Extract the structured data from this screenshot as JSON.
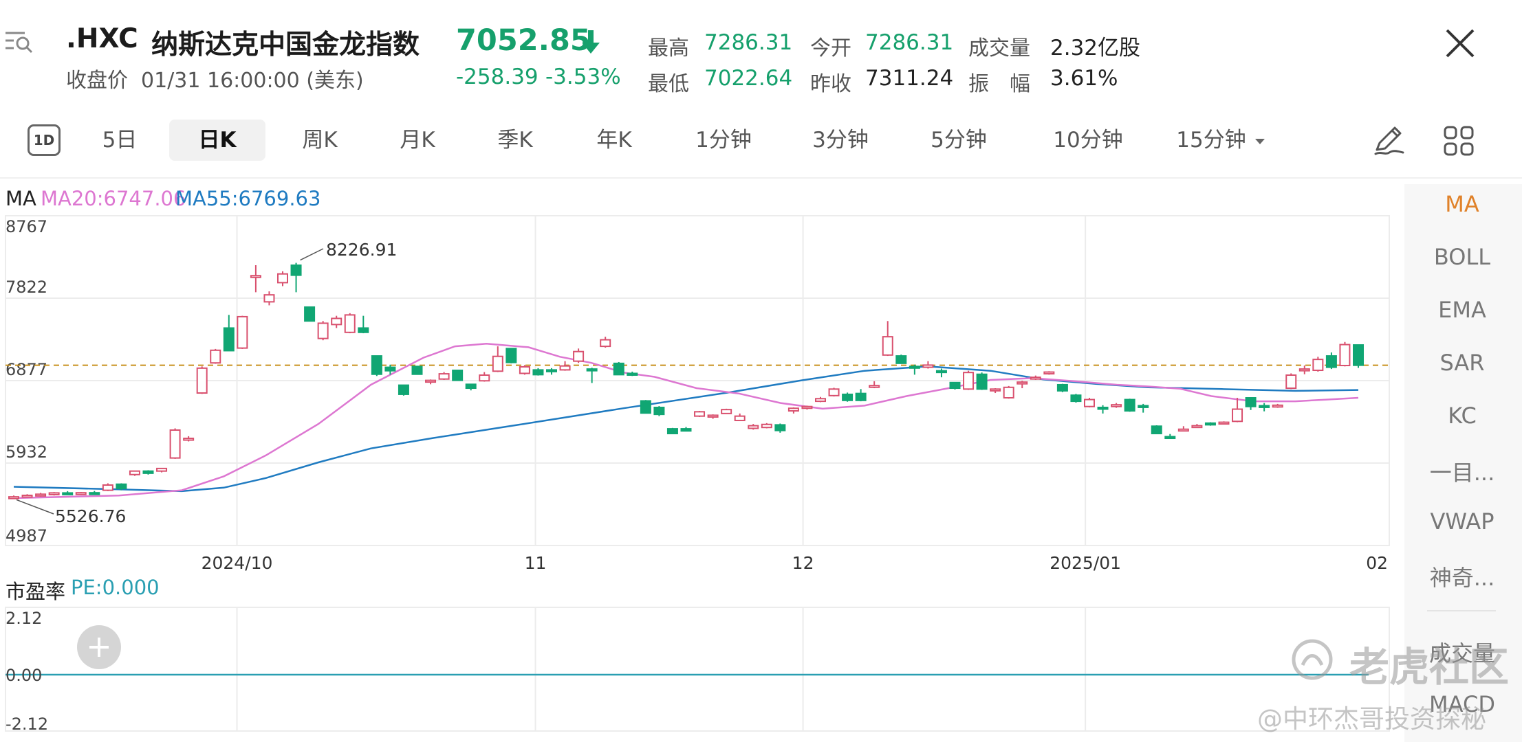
{
  "header": {
    "symbol": ".HXC",
    "name": "纳斯达克中国金龙指数",
    "price": "7052.85",
    "close_label": "收盘价",
    "close_time": "01/31 16:00:00 (美东)",
    "change": "-258.39",
    "change_pct": "-3.53%",
    "stats": [
      {
        "label": "最高",
        "value": "7286.31",
        "color": "#16a06c"
      },
      {
        "label": "今开",
        "value": "7286.31",
        "color": "#16a06c"
      },
      {
        "label": "成交量",
        "value": "2.32亿股",
        "color": "#222222"
      },
      {
        "label": "最低",
        "value": "7022.64",
        "color": "#16a06c"
      },
      {
        "label": "昨收",
        "value": "7311.24",
        "color": "#222222"
      },
      {
        "label": "振　幅",
        "value": "3.61%",
        "color": "#222222"
      }
    ]
  },
  "periods": {
    "day_icon_text": "1D",
    "tabs": [
      "5日",
      "日K",
      "周K",
      "月K",
      "季K",
      "年K",
      "1分钟",
      "3分钟",
      "5分钟",
      "10分钟",
      "15分钟"
    ],
    "active": "日K"
  },
  "icons": [
    "menu-search-icon",
    "arrow-down-icon",
    "close-icon",
    "dropdown-arrow-icon",
    "pencil-icon",
    "grid-icon",
    "plus-icon"
  ],
  "colors": {
    "up": "#d9506e",
    "down": "#10a673",
    "ma20": "#dd77d1",
    "ma55": "#1f7bc1",
    "accent": "#e0822a",
    "pe": "#2a9fb2"
  },
  "legend": {
    "ma": "MA",
    "ma20": "MA20:6747.06",
    "ma55": "MA55:6769.63"
  },
  "indicators": {
    "items": [
      "MA",
      "BOLL",
      "EMA",
      "SAR",
      "KC",
      "一目...",
      "VWAP",
      "神奇..."
    ],
    "active": "MA",
    "sub_items": [
      "成交量",
      "MACD"
    ]
  },
  "sub_chart": {
    "label": "市盈率",
    "value": "PE:0.000",
    "y_ticks": [
      "2.12",
      "0.00",
      "-2.12"
    ]
  },
  "watermark": {
    "brand": "老虎社区",
    "author": "@中环杰哥投资探秘"
  },
  "chart_data": {
    "type": "candlestick",
    "y_ticks": [
      "8767",
      "7822",
      "6877",
      "5932",
      "4987"
    ],
    "ylim": [
      4987,
      8767
    ],
    "x_ticks": [
      "2024/10",
      "11",
      "12",
      "2025/01",
      "02"
    ],
    "x_tick_index": [
      16.6,
      38.8,
      58.7,
      79.7,
      100.8
    ],
    "reference_line": 7052.85,
    "annotations": [
      {
        "text": "8226.91",
        "index": 21,
        "value": 8226.91
      },
      {
        "text": "5526.76",
        "index": 0,
        "value": 5526.76
      }
    ],
    "candles": [
      {
        "o": 5540,
        "h": 5560,
        "l": 5527,
        "c": 5545
      },
      {
        "o": 5550,
        "h": 5575,
        "l": 5535,
        "c": 5562
      },
      {
        "o": 5560,
        "h": 5590,
        "l": 5548,
        "c": 5575
      },
      {
        "o": 5575,
        "h": 5600,
        "l": 5560,
        "c": 5590
      },
      {
        "o": 5590,
        "h": 5610,
        "l": 5575,
        "c": 5580
      },
      {
        "o": 5580,
        "h": 5600,
        "l": 5565,
        "c": 5592
      },
      {
        "o": 5592,
        "h": 5612,
        "l": 5580,
        "c": 5588
      },
      {
        "o": 5620,
        "h": 5700,
        "l": 5610,
        "c": 5680
      },
      {
        "o": 5690,
        "h": 5700,
        "l": 5620,
        "c": 5640
      },
      {
        "o": 5800,
        "h": 5845,
        "l": 5785,
        "c": 5840
      },
      {
        "o": 5840,
        "h": 5850,
        "l": 5800,
        "c": 5815
      },
      {
        "o": 5840,
        "h": 5875,
        "l": 5825,
        "c": 5870
      },
      {
        "o": 5990,
        "h": 6330,
        "l": 5980,
        "c": 6310
      },
      {
        "o": 6215,
        "h": 6240,
        "l": 6180,
        "c": 6215
      },
      {
        "o": 6735,
        "h": 7040,
        "l": 6725,
        "c": 7020
      },
      {
        "o": 7080,
        "h": 7240,
        "l": 7070,
        "c": 7225
      },
      {
        "o": 7480,
        "h": 7630,
        "l": 7220,
        "c": 7220
      },
      {
        "o": 7250,
        "h": 7620,
        "l": 7240,
        "c": 7610
      },
      {
        "o": 8070,
        "h": 8200,
        "l": 7890,
        "c": 8080
      },
      {
        "o": 7780,
        "h": 7900,
        "l": 7740,
        "c": 7860
      },
      {
        "o": 8000,
        "h": 8130,
        "l": 7960,
        "c": 8100
      },
      {
        "o": 8200,
        "h": 8227,
        "l": 7890,
        "c": 8085
      },
      {
        "o": 7720,
        "h": 7720,
        "l": 7560,
        "c": 7560
      },
      {
        "o": 7360,
        "h": 7560,
        "l": 7340,
        "c": 7535
      },
      {
        "o": 7520,
        "h": 7620,
        "l": 7480,
        "c": 7590
      },
      {
        "o": 7430,
        "h": 7650,
        "l": 7420,
        "c": 7630
      },
      {
        "o": 7480,
        "h": 7620,
        "l": 7420,
        "c": 7430
      },
      {
        "o": 7160,
        "h": 7160,
        "l": 6930,
        "c": 6950
      },
      {
        "o": 7030,
        "h": 7060,
        "l": 6945,
        "c": 6990
      },
      {
        "o": 6825,
        "h": 6825,
        "l": 6705,
        "c": 6720
      },
      {
        "o": 7040,
        "h": 7040,
        "l": 6945,
        "c": 6950
      },
      {
        "o": 6865,
        "h": 6890,
        "l": 6835,
        "c": 6880
      },
      {
        "o": 6895,
        "h": 6975,
        "l": 6885,
        "c": 6955
      },
      {
        "o": 6995,
        "h": 7000,
        "l": 6875,
        "c": 6880
      },
      {
        "o": 6835,
        "h": 6840,
        "l": 6765,
        "c": 6790
      },
      {
        "o": 6875,
        "h": 6975,
        "l": 6865,
        "c": 6940
      },
      {
        "o": 6985,
        "h": 7270,
        "l": 6975,
        "c": 7155
      },
      {
        "o": 7245,
        "h": 7245,
        "l": 7075,
        "c": 7085
      },
      {
        "o": 6960,
        "h": 7055,
        "l": 6945,
        "c": 7035
      },
      {
        "o": 7000,
        "h": 7020,
        "l": 6935,
        "c": 6945
      },
      {
        "o": 7000,
        "h": 7020,
        "l": 6945,
        "c": 6985
      },
      {
        "o": 7000,
        "h": 7100,
        "l": 6990,
        "c": 7045
      },
      {
        "o": 7100,
        "h": 7245,
        "l": 7080,
        "c": 7210
      },
      {
        "o": 7010,
        "h": 7025,
        "l": 6850,
        "c": 7000
      },
      {
        "o": 7270,
        "h": 7380,
        "l": 7255,
        "c": 7345
      },
      {
        "o": 7075,
        "h": 7090,
        "l": 6940,
        "c": 6945
      },
      {
        "o": 6960,
        "h": 6980,
        "l": 6930,
        "c": 6950
      },
      {
        "o": 6645,
        "h": 6655,
        "l": 6500,
        "c": 6505
      },
      {
        "o": 6570,
        "h": 6585,
        "l": 6470,
        "c": 6490
      },
      {
        "o": 6325,
        "h": 6335,
        "l": 6265,
        "c": 6270
      },
      {
        "o": 6325,
        "h": 6345,
        "l": 6295,
        "c": 6300
      },
      {
        "o": 6470,
        "h": 6530,
        "l": 6460,
        "c": 6520
      },
      {
        "o": 6460,
        "h": 6490,
        "l": 6440,
        "c": 6480
      },
      {
        "o": 6500,
        "h": 6555,
        "l": 6495,
        "c": 6545
      },
      {
        "o": 6420,
        "h": 6500,
        "l": 6415,
        "c": 6470
      },
      {
        "o": 6330,
        "h": 6380,
        "l": 6315,
        "c": 6360
      },
      {
        "o": 6340,
        "h": 6390,
        "l": 6330,
        "c": 6375
      },
      {
        "o": 6370,
        "h": 6385,
        "l": 6280,
        "c": 6305
      },
      {
        "o": 6530,
        "h": 6570,
        "l": 6500,
        "c": 6560
      },
      {
        "o": 6560,
        "h": 6590,
        "l": 6545,
        "c": 6580
      },
      {
        "o": 6640,
        "h": 6690,
        "l": 6630,
        "c": 6670
      },
      {
        "o": 6705,
        "h": 6795,
        "l": 6695,
        "c": 6780
      },
      {
        "o": 6720,
        "h": 6740,
        "l": 6635,
        "c": 6650
      },
      {
        "o": 6730,
        "h": 6780,
        "l": 6640,
        "c": 6650
      },
      {
        "o": 6820,
        "h": 6870,
        "l": 6790,
        "c": 6820
      },
      {
        "o": 7170,
        "h": 7560,
        "l": 7160,
        "c": 7380
      },
      {
        "o": 7160,
        "h": 7175,
        "l": 7070,
        "c": 7075
      },
      {
        "o": 7040,
        "h": 7060,
        "l": 6945,
        "c": 7030
      },
      {
        "o": 7030,
        "h": 7100,
        "l": 7015,
        "c": 7055
      },
      {
        "o": 6990,
        "h": 7015,
        "l": 6915,
        "c": 6975
      },
      {
        "o": 6855,
        "h": 6860,
        "l": 6775,
        "c": 6790
      },
      {
        "o": 6780,
        "h": 6990,
        "l": 6770,
        "c": 6970
      },
      {
        "o": 6950,
        "h": 6970,
        "l": 6770,
        "c": 6780
      },
      {
        "o": 6770,
        "h": 6790,
        "l": 6735,
        "c": 6780
      },
      {
        "o": 6680,
        "h": 6815,
        "l": 6670,
        "c": 6800
      },
      {
        "o": 6850,
        "h": 6875,
        "l": 6790,
        "c": 6860
      },
      {
        "o": 6900,
        "h": 6935,
        "l": 6885,
        "c": 6915
      },
      {
        "o": 6960,
        "h": 6985,
        "l": 6945,
        "c": 6975
      },
      {
        "o": 6830,
        "h": 6840,
        "l": 6745,
        "c": 6760
      },
      {
        "o": 6710,
        "h": 6725,
        "l": 6625,
        "c": 6640
      },
      {
        "o": 6580,
        "h": 6680,
        "l": 6570,
        "c": 6660
      },
      {
        "o": 6570,
        "h": 6595,
        "l": 6500,
        "c": 6560
      },
      {
        "o": 6580,
        "h": 6620,
        "l": 6565,
        "c": 6600
      },
      {
        "o": 6660,
        "h": 6670,
        "l": 6520,
        "c": 6530
      },
      {
        "o": 6590,
        "h": 6610,
        "l": 6510,
        "c": 6575
      },
      {
        "o": 6355,
        "h": 6365,
        "l": 6265,
        "c": 6270
      },
      {
        "o": 6235,
        "h": 6265,
        "l": 6215,
        "c": 6225
      },
      {
        "o": 6310,
        "h": 6355,
        "l": 6305,
        "c": 6320
      },
      {
        "o": 6360,
        "h": 6380,
        "l": 6345,
        "c": 6360
      },
      {
        "o": 6390,
        "h": 6400,
        "l": 6360,
        "c": 6380
      },
      {
        "o": 6390,
        "h": 6410,
        "l": 6380,
        "c": 6400
      },
      {
        "o": 6410,
        "h": 6680,
        "l": 6400,
        "c": 6550
      },
      {
        "o": 6680,
        "h": 6685,
        "l": 6540,
        "c": 6580
      },
      {
        "o": 6590,
        "h": 6620,
        "l": 6525,
        "c": 6585
      },
      {
        "o": 6580,
        "h": 6610,
        "l": 6565,
        "c": 6595
      },
      {
        "o": 6790,
        "h": 6960,
        "l": 6780,
        "c": 6940
      },
      {
        "o": 7000,
        "h": 7050,
        "l": 6950,
        "c": 7010
      },
      {
        "o": 6995,
        "h": 7150,
        "l": 6980,
        "c": 7120
      },
      {
        "o": 7160,
        "h": 7200,
        "l": 7010,
        "c": 7030
      },
      {
        "o": 7050,
        "h": 7320,
        "l": 7040,
        "c": 7290
      },
      {
        "o": 7286,
        "h": 7286,
        "l": 7023,
        "c": 7053
      }
    ],
    "ma20": [
      [
        0,
        5530
      ],
      [
        20,
        5560
      ],
      [
        32,
        5620
      ],
      [
        40,
        5780
      ],
      [
        48,
        6020
      ],
      [
        58,
        6380
      ],
      [
        68,
        6830
      ],
      [
        78,
        7140
      ],
      [
        84,
        7270
      ],
      [
        90,
        7300
      ],
      [
        98,
        7260
      ],
      [
        104,
        7150
      ],
      [
        110,
        7080
      ],
      [
        116,
        6970
      ],
      [
        122,
        6920
      ],
      [
        130,
        6790
      ],
      [
        138,
        6730
      ],
      [
        146,
        6620
      ],
      [
        154,
        6555
      ],
      [
        162,
        6590
      ],
      [
        170,
        6700
      ],
      [
        178,
        6790
      ],
      [
        186,
        6885
      ],
      [
        194,
        6905
      ],
      [
        202,
        6870
      ],
      [
        210,
        6830
      ],
      [
        216,
        6810
      ],
      [
        222,
        6785
      ],
      [
        228,
        6700
      ],
      [
        236,
        6640
      ],
      [
        244,
        6640
      ],
      [
        250,
        6660
      ],
      [
        256,
        6680
      ]
    ],
    "ma55": [
      [
        0,
        5660
      ],
      [
        20,
        5630
      ],
      [
        32,
        5610
      ],
      [
        40,
        5650
      ],
      [
        48,
        5760
      ],
      [
        58,
        5940
      ],
      [
        68,
        6100
      ],
      [
        80,
        6220
      ],
      [
        96,
        6370
      ],
      [
        116,
        6560
      ],
      [
        136,
        6740
      ],
      [
        150,
        6880
      ],
      [
        162,
        6990
      ],
      [
        174,
        7040
      ],
      [
        186,
        6990
      ],
      [
        196,
        6890
      ],
      [
        206,
        6840
      ],
      [
        216,
        6800
      ],
      [
        230,
        6780
      ],
      [
        244,
        6760
      ],
      [
        256,
        6770
      ]
    ]
  }
}
